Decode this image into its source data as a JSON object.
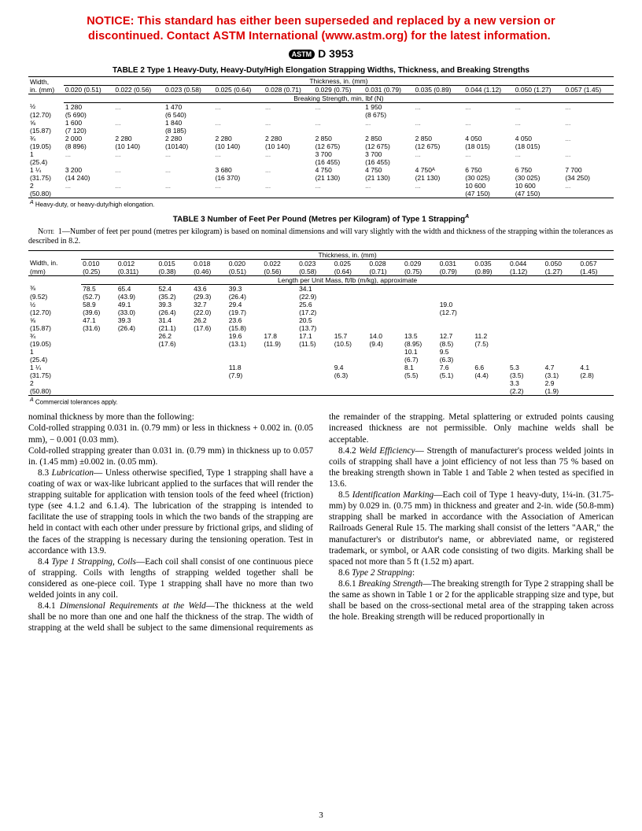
{
  "notice": "NOTICE: This standard has either been superseded and replaced by a new version or discontinued. Contact ASTM International (www.astm.org) for the latest information. ",
  "doc_num": "D 3953",
  "t2": {
    "caption": "TABLE 2  Type 1 Heavy-Duty, Heavy-Duty/High Elongation Strapping Widths, Thickness, and Breaking Strengths",
    "thick_hdr": "Thickness, in. (mm)",
    "width_hdr1": "Width,",
    "width_hdr2": "in. (mm)",
    "thick_cols": [
      "0.020 (0.51)",
      "0.022 (0.56)",
      "0.023 (0.58)",
      "0.025 (0.64)",
      "0.028 (0.71)",
      "0.029 (0.75)",
      "0.031 (0.79)",
      "0.035 (0.89)",
      "0.044 (1.12)",
      "0.050 (1.27)",
      "0.057 (1.45)"
    ],
    "break_hdr": "Breaking Strength, min, lbf (N)",
    "rows": [
      {
        "w1": "½",
        "w2": "(12.70)",
        "c": [
          [
            "1 280",
            "(5 690)"
          ],
          [
            "...",
            ""
          ],
          [
            "1 470",
            "(6 540)"
          ],
          [
            "...",
            ""
          ],
          [
            "...",
            ""
          ],
          [
            "...",
            ""
          ],
          [
            "1 950",
            "(8 675)"
          ],
          [
            "...",
            ""
          ],
          [
            "...",
            ""
          ],
          [
            "...",
            ""
          ],
          [
            "...",
            ""
          ]
        ]
      },
      {
        "w1": "⅝",
        "w2": "(15.87)",
        "c": [
          [
            "1 600",
            "(7 120)"
          ],
          [
            "...",
            ""
          ],
          [
            "1 840",
            "(8 185)"
          ],
          [
            "...",
            ""
          ],
          [
            "...",
            ""
          ],
          [
            "...",
            ""
          ],
          [
            "...",
            ""
          ],
          [
            "...",
            ""
          ],
          [
            "...",
            ""
          ],
          [
            "...",
            ""
          ],
          [
            "...",
            ""
          ]
        ]
      },
      {
        "w1": "¾",
        "w2": "(19.05)",
        "c": [
          [
            "2 000",
            "(8 896)"
          ],
          [
            "2 280",
            "(10 140)"
          ],
          [
            "2 280",
            "(10140)"
          ],
          [
            "2 280",
            "(10 140)"
          ],
          [
            "2 280",
            "(10 140)"
          ],
          [
            "2 850",
            "(12 675)"
          ],
          [
            "2 850",
            "(12 675)"
          ],
          [
            "2 850",
            "(12 675)"
          ],
          [
            "4 050",
            "(18 015)"
          ],
          [
            "4 050",
            "(18 015)"
          ],
          [
            "...",
            ""
          ]
        ]
      },
      {
        "w1": "1",
        "w2": "(25.4)",
        "c": [
          [
            "...",
            ""
          ],
          [
            "...",
            ""
          ],
          [
            "...",
            ""
          ],
          [
            "...",
            ""
          ],
          [
            "...",
            ""
          ],
          [
            "3 700",
            "(16 455)"
          ],
          [
            "3 700",
            "(16 455)"
          ],
          [
            "...",
            ""
          ],
          [
            "...",
            ""
          ],
          [
            "...",
            ""
          ],
          [
            "...",
            ""
          ]
        ]
      },
      {
        "w1": "1 ¼",
        "w2": "(31.75)",
        "c": [
          [
            "3 200",
            "(14 240)"
          ],
          [
            "...",
            ""
          ],
          [
            "...",
            ""
          ],
          [
            "3 680",
            "(16 370)"
          ],
          [
            "...",
            ""
          ],
          [
            "4 750",
            "(21 130)"
          ],
          [
            "4 750",
            "(21 130)"
          ],
          [
            "4 750ᴬ",
            "(21 130)"
          ],
          [
            "6 750",
            "(30 025)"
          ],
          [
            "6 750",
            "(30 025)"
          ],
          [
            "7 700",
            "(34 250)"
          ]
        ]
      },
      {
        "w1": "2",
        "w2": "(50.80)",
        "c": [
          [
            "...",
            ""
          ],
          [
            "...",
            ""
          ],
          [
            "...",
            ""
          ],
          [
            "...",
            ""
          ],
          [
            "...",
            ""
          ],
          [
            "...",
            ""
          ],
          [
            "...",
            ""
          ],
          [
            "...",
            ""
          ],
          [
            "10 600",
            "(47 150)"
          ],
          [
            "10 600",
            "(47 150)"
          ],
          [
            "...",
            ""
          ]
        ]
      }
    ],
    "footnote": "Heavy-duty, or heavy-duty/high elongation."
  },
  "t3": {
    "caption": "TABLE 3  Number of Feet Per Pound (Metres per Kilogram) of Type 1 Strapping",
    "note": "1—Number of feet per pound (metres per kilogram) is based on nominal dimensions and will vary slightly with the width and thickness of the strapping within the tolerances as described in 8.2.",
    "thick_hdr": "Thickness, in. (mm)",
    "width_hdr1": "Width, in.",
    "width_hdr2": "(mm)",
    "thick_cols_top": [
      "0.010",
      "0.012",
      "0.015",
      "0.018",
      "0.020",
      "0.022",
      "0.023",
      "0.025",
      "0.028",
      "0.029",
      "0.031",
      "0.035",
      "0.044",
      "0.050",
      "0.057"
    ],
    "thick_cols_bot": [
      "(0.25)",
      "(0.311)",
      "(0.38)",
      "(0.46)",
      "(0.51)",
      "(0.56)",
      "(0.58)",
      "(0.64)",
      "(0.71)",
      "(0.75)",
      "(0.79)",
      "(0.89)",
      "(1.12)",
      "(1.27)",
      "(1.45)"
    ],
    "len_hdr": "Length per Unit Mass, ft/lb (m/kg), approximate",
    "rows": [
      {
        "w1": "⅜",
        "w2": "(9.52)",
        "c": [
          [
            "78.5",
            "(52.7)"
          ],
          [
            "65.4",
            "(43.9)"
          ],
          [
            "52.4",
            "(35.2)"
          ],
          [
            "43.6",
            "(29.3)"
          ],
          [
            "39.3",
            "(26.4)"
          ],
          [
            "",
            ""
          ],
          [
            "34.1",
            "(22.9)"
          ],
          [
            "",
            ""
          ],
          [
            "",
            ""
          ],
          [
            "",
            ""
          ],
          [
            "",
            ""
          ],
          [
            "",
            ""
          ],
          [
            "",
            ""
          ],
          [
            "",
            ""
          ],
          [
            "",
            ""
          ]
        ]
      },
      {
        "w1": "½",
        "w2": "(12.70)",
        "c": [
          [
            "58.9",
            "(39.6)"
          ],
          [
            "49.1",
            "(33.0)"
          ],
          [
            "39.3",
            "(26.4)"
          ],
          [
            "32.7",
            "(22.0)"
          ],
          [
            "29.4",
            "(19.7)"
          ],
          [
            "",
            ""
          ],
          [
            "25.6",
            "(17.2)"
          ],
          [
            "",
            ""
          ],
          [
            "",
            ""
          ],
          [
            "",
            ""
          ],
          [
            "19.0",
            "(12.7)"
          ],
          [
            "",
            ""
          ],
          [
            "",
            ""
          ],
          [
            "",
            ""
          ],
          [
            "",
            ""
          ]
        ]
      },
      {
        "w1": "⅝",
        "w2": "(15.87)",
        "c": [
          [
            "47.1",
            "(31.6)"
          ],
          [
            "39.3",
            "(26.4)"
          ],
          [
            "31.4",
            "(21.1)"
          ],
          [
            "26.2",
            "(17.6)"
          ],
          [
            "23.6",
            "(15.8)"
          ],
          [
            "",
            ""
          ],
          [
            "20.5",
            "(13.7)"
          ],
          [
            "",
            ""
          ],
          [
            "",
            ""
          ],
          [
            "",
            ""
          ],
          [
            "",
            ""
          ],
          [
            "",
            ""
          ],
          [
            "",
            ""
          ],
          [
            "",
            ""
          ],
          [
            "",
            ""
          ]
        ]
      },
      {
        "w1": "¾",
        "w2": "(19.05)",
        "c": [
          [
            "",
            ""
          ],
          [
            "",
            ""
          ],
          [
            "26.2",
            "(17.6)"
          ],
          [
            "",
            ""
          ],
          [
            "19.6",
            "(13.1)"
          ],
          [
            "17.8",
            "(11.9)"
          ],
          [
            "17.1",
            "(11.5)"
          ],
          [
            "15.7",
            "(10.5)"
          ],
          [
            "14.0",
            "(9.4)"
          ],
          [
            "13.5",
            "(8.95)"
          ],
          [
            "12.7",
            "(8.5)"
          ],
          [
            "11.2",
            "(7.5)"
          ],
          [
            "",
            ""
          ],
          [
            "",
            ""
          ],
          [
            "",
            ""
          ]
        ]
      },
      {
        "w1": "1",
        "w2": "(25.4)",
        "c": [
          [
            "",
            ""
          ],
          [
            "",
            ""
          ],
          [
            "",
            ""
          ],
          [
            "",
            ""
          ],
          [
            "",
            ""
          ],
          [
            "",
            ""
          ],
          [
            "",
            ""
          ],
          [
            "",
            ""
          ],
          [
            "",
            ""
          ],
          [
            "10.1",
            "(6.7)"
          ],
          [
            "9.5",
            "(6.3)"
          ],
          [
            "",
            ""
          ],
          [
            "",
            ""
          ],
          [
            "",
            ""
          ],
          [
            "",
            ""
          ]
        ]
      },
      {
        "w1": "1 ¼",
        "w2": "(31.75)",
        "c": [
          [
            "",
            ""
          ],
          [
            "",
            ""
          ],
          [
            "",
            ""
          ],
          [
            "",
            ""
          ],
          [
            "11.8",
            "(7.9)"
          ],
          [
            "",
            ""
          ],
          [
            "",
            ""
          ],
          [
            "9.4",
            "(6.3)"
          ],
          [
            "",
            ""
          ],
          [
            "8.1",
            "(5.5)"
          ],
          [
            "7.6",
            "(5.1)"
          ],
          [
            "6.6",
            "(4.4)"
          ],
          [
            "5.3",
            "(3.5)"
          ],
          [
            "4.7",
            "(3.1)"
          ],
          [
            "4.1",
            "(2.8)"
          ]
        ]
      },
      {
        "w1": "2",
        "w2": "(50.80)",
        "c": [
          [
            "",
            ""
          ],
          [
            "",
            ""
          ],
          [
            "",
            ""
          ],
          [
            "",
            ""
          ],
          [
            "",
            ""
          ],
          [
            "",
            ""
          ],
          [
            "",
            ""
          ],
          [
            "",
            ""
          ],
          [
            "",
            ""
          ],
          [
            "",
            ""
          ],
          [
            "",
            ""
          ],
          [
            "",
            ""
          ],
          [
            "3.3",
            "(2.2)"
          ],
          [
            "2.9",
            "(1.9)"
          ],
          [
            "",
            ""
          ]
        ]
      }
    ],
    "footnote": "Commercial tolerances apply."
  },
  "body": {
    "p1": "nominal thickness by more than the following:",
    "p2": "Cold-rolled strapping 0.031 in. (0.79 mm) or less in thickness + 0.002 in. (0.05 mm), − 0.001 (0.03 mm).",
    "p3": "Cold-rolled strapping greater than 0.031 in. (0.79 mm) in thickness up to 0.057 in. (1.45 mm)  ±0.002 in. (0.05 mm).",
    "p4a": "8.3 ",
    "p4i": "Lubrication",
    "p4b": "— Unless otherwise specified, Type 1 strapping shall have a coating of wax or wax-like lubricant applied to the surfaces that will render the strapping suitable for application with tension tools of the feed wheel (friction) type (see 4.1.2 and 6.1.4). The lubrication of the strapping is intended to facilitate the use of strapping tools in which the two bands of the strapping are held in contact with each other under pressure by frictional grips, and sliding of the faces of the strapping is necessary during the tensioning operation. Test in accordance with 13.9.",
    "p5a": "8.4 ",
    "p5i": "Type 1 Strapping, Coils",
    "p5b": "—Each coil shall consist of one continuous piece of strapping. Coils with lengths of strapping welded together shall be considered as one-piece coil. Type 1 strapping shall have no more than two welded joints in any coil.",
    "p6a": "8.4.1 ",
    "p6i": "Dimensional Requirements at the Weld",
    "p6b": "—The thickness at the weld shall be no more than one and one half the thickness of the strap. The width of strapping at the weld shall be subject to the same dimensional requirements as the remainder of the strapping. Metal splattering or extruded points causing increased thickness are not permissible. Only machine welds shall be acceptable.",
    "p7a": "8.4.2 ",
    "p7i": "Weld Efficiency",
    "p7b": "— Strength of manufacturer's process welded joints in coils of strapping shall have a joint efficiency of not less than 75 % based on the breaking strength shown in Table 1 and Table 2 when tested as specified in 13.6.",
    "p8a": "8.5 ",
    "p8i": "Identification Marking",
    "p8b": "—Each coil of Type 1 heavy-duty, 1¼-in. (31.75-mm) by 0.029 in. (0.75 mm) in thickness and greater and 2-in. wide (50.8-mm) strapping shall be marked in accordance with the Association of American Railroads General Rule 15. The marking shall consist of the letters \"AAR,\" the manufacturer's or distributor's name, or abbreviated name, or registered trademark, or symbol, or AAR code consisting of two digits. Marking shall be spaced not more than 5 ft (1.52 m) apart.",
    "p9a": "8.6 ",
    "p9i": "Type 2 Strapping",
    "p9b": ":",
    "p10a": "8.6.1 ",
    "p10i": "Breaking Strength",
    "p10b": "—The breaking strength for Type 2 strapping shall be the same as shown in Table 1 or 2 for the applicable strapping size and type, but shall be based on the cross-sectional metal area of the strapping taken across the hole. Breaking strength will be reduced proportionally in"
  },
  "page": "3"
}
